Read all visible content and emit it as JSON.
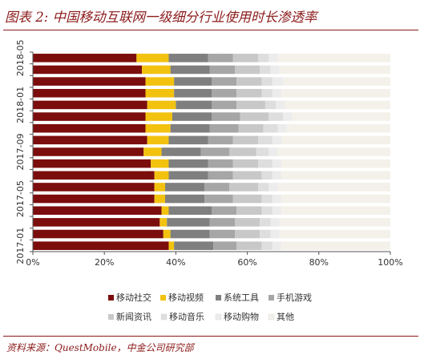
{
  "figure": {
    "title": "图表 2:  中国移动互联网一级细分行业使用时长渗透率",
    "source": "资料来源：QuestMobile，中金公司研究部"
  },
  "colors": {
    "title_accent": "#8b1a1a",
    "axis": "#555555",
    "series": [
      "#7b0d0d",
      "#f2c20f",
      "#7f7f7f",
      "#a6a6a6",
      "#c8c8c8",
      "#dedede",
      "#ececec",
      "#f3f1e9"
    ]
  },
  "chart_data": {
    "type": "bar",
    "orientation": "horizontal",
    "stacked": "percent",
    "categories": [
      "2018-05",
      "2018-04",
      "2018-03",
      "2018-02",
      "2018-01",
      "2017-12",
      "2017-11",
      "2017-10",
      "2017-09",
      "2017-08",
      "2017-07",
      "2017-06",
      "2017-05",
      "2017-04",
      "2017-03",
      "2017-02",
      "2017-01"
    ],
    "category_tick_labels": [
      "2018-05",
      "2018-01",
      "2017-09",
      "2017-05",
      "2017-01"
    ],
    "x_ticks": [
      "0%",
      "20%",
      "40%",
      "60%",
      "80%",
      "100%"
    ],
    "xlim": [
      0,
      100
    ],
    "grid": false,
    "legend_position": "bottom",
    "series": [
      {
        "name": "移动社交",
        "values": [
          29.0,
          30.5,
          31.5,
          31.5,
          32.0,
          31.5,
          31.5,
          32.0,
          31.0,
          33.0,
          34.0,
          34.0,
          34.0,
          36.0,
          35.5,
          36.5,
          38.0
        ]
      },
      {
        "name": "移动视频",
        "values": [
          9.0,
          8.0,
          8.0,
          8.0,
          8.0,
          7.5,
          7.0,
          6.0,
          5.0,
          5.0,
          4.0,
          3.0,
          3.0,
          2.0,
          2.0,
          2.0,
          1.5
        ]
      },
      {
        "name": "系统工具",
        "values": [
          11.0,
          11.0,
          10.5,
          10.5,
          10.0,
          11.0,
          11.0,
          11.0,
          11.0,
          11.0,
          11.0,
          11.0,
          11.0,
          12.0,
          12.0,
          11.0,
          11.0
        ]
      },
      {
        "name": "手机游戏",
        "values": [
          7.0,
          7.0,
          7.0,
          7.0,
          7.0,
          8.0,
          8.0,
          7.0,
          8.0,
          7.0,
          7.0,
          7.0,
          8.0,
          7.0,
          7.0,
          7.0,
          6.5
        ]
      },
      {
        "name": "新闻资讯",
        "values": [
          7.0,
          7.0,
          7.0,
          7.0,
          8.0,
          8.0,
          7.0,
          7.0,
          7.5,
          7.0,
          8.0,
          8.0,
          8.0,
          7.0,
          7.0,
          7.0,
          7.0
        ]
      },
      {
        "name": "移动音乐",
        "values": [
          3.0,
          3.0,
          3.0,
          3.0,
          3.0,
          4.0,
          4.0,
          4.0,
          3.5,
          4.0,
          3.0,
          3.0,
          3.0,
          3.0,
          3.0,
          3.0,
          3.0
        ]
      },
      {
        "name": "移动购物",
        "values": [
          2.5,
          2.5,
          3.0,
          2.5,
          2.5,
          2.5,
          2.5,
          2.5,
          2.5,
          2.5,
          2.5,
          2.5,
          2.5,
          2.5,
          2.5,
          2.5,
          2.5
        ]
      },
      {
        "name": "其他",
        "values": [
          31.5,
          31.0,
          30.0,
          30.5,
          29.5,
          27.5,
          29.0,
          30.5,
          31.5,
          30.5,
          30.5,
          31.5,
          30.5,
          30.5,
          31.0,
          31.0,
          30.5
        ]
      }
    ]
  }
}
